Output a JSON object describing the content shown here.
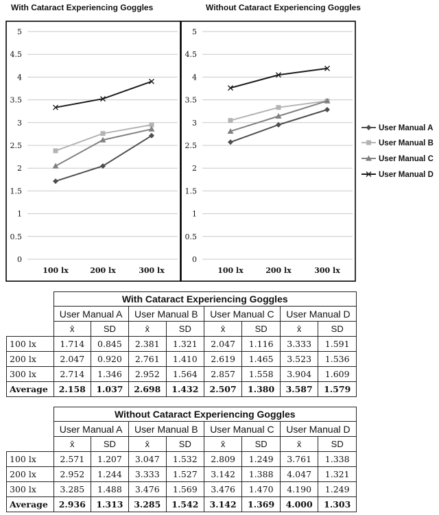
{
  "chart_data": [
    {
      "type": "line",
      "title": "With Cataract Experiencing Goggles",
      "categories": [
        "100 lx",
        "200 lx",
        "300 lx"
      ],
      "ylim": [
        0,
        5
      ],
      "yticks": [
        "0",
        "0.5",
        "1",
        "1.5",
        "2",
        "2.5",
        "3",
        "3.5",
        "4",
        "4.5",
        "5"
      ],
      "grid": true,
      "series": [
        {
          "name": "User Manual A",
          "values": [
            1.714,
            2.047,
            2.714
          ],
          "color": "#4d4d4d",
          "marker": "diamond"
        },
        {
          "name": "User Manual B",
          "values": [
            2.381,
            2.761,
            2.952
          ],
          "color": "#b3b3b3",
          "marker": "square"
        },
        {
          "name": "User Manual C",
          "values": [
            2.047,
            2.619,
            2.857
          ],
          "color": "#808080",
          "marker": "triangle"
        },
        {
          "name": "User Manual D",
          "values": [
            3.333,
            3.523,
            3.904
          ],
          "color": "#1a1a1a",
          "marker": "x"
        }
      ]
    },
    {
      "type": "line",
      "title": "Without Cataract Experiencing Goggles",
      "categories": [
        "100 lx",
        "200 lx",
        "300 lx"
      ],
      "ylim": [
        0,
        5
      ],
      "yticks": [
        "0",
        "0.5",
        "1",
        "1.5",
        "2",
        "2.5",
        "3",
        "3.5",
        "4",
        "4.5",
        "5"
      ],
      "grid": true,
      "legend": "right",
      "series": [
        {
          "name": "User Manual A",
          "values": [
            2.571,
            2.952,
            3.285
          ],
          "color": "#4d4d4d",
          "marker": "diamond"
        },
        {
          "name": "User Manual B",
          "values": [
            3.047,
            3.333,
            3.476
          ],
          "color": "#b3b3b3",
          "marker": "square"
        },
        {
          "name": "User Manual C",
          "values": [
            2.809,
            3.142,
            3.476
          ],
          "color": "#808080",
          "marker": "triangle"
        },
        {
          "name": "User Manual D",
          "values": [
            3.761,
            4.047,
            4.19
          ],
          "color": "#1a1a1a",
          "marker": "x"
        }
      ]
    }
  ],
  "tables": [
    {
      "title": "With Cataract Experiencing Goggles",
      "groups": [
        "User Manual A",
        "User Manual B",
        "User Manual C",
        "User Manual D"
      ],
      "sub": [
        "x̄",
        "SD"
      ],
      "rows": [
        {
          "label": "100 lx",
          "cells": [
            "1.714",
            "0.845",
            "2.381",
            "1.321",
            "2.047",
            "1.116",
            "3.333",
            "1.591"
          ]
        },
        {
          "label": "200 lx",
          "cells": [
            "2.047",
            "0.920",
            "2.761",
            "1.410",
            "2.619",
            "1.465",
            "3.523",
            "1.536"
          ]
        },
        {
          "label": "300 lx",
          "cells": [
            "2.714",
            "1.346",
            "2.952",
            "1.564",
            "2.857",
            "1.558",
            "3.904",
            "1.609"
          ]
        },
        {
          "label": "Average",
          "cells": [
            "2.158",
            "1.037",
            "2.698",
            "1.432",
            "2.507",
            "1.380",
            "3.587",
            "1.579"
          ]
        }
      ]
    },
    {
      "title": "Without Cataract Experiencing Goggles",
      "groups": [
        "User Manual A",
        "User Manual B",
        "User Manual C",
        "User Manual D"
      ],
      "sub": [
        "x̄",
        "SD"
      ],
      "rows": [
        {
          "label": "100 lx",
          "cells": [
            "2.571",
            "1.207",
            "3.047",
            "1.532",
            "2.809",
            "1.249",
            "3.761",
            "1.338"
          ]
        },
        {
          "label": "200 lx",
          "cells": [
            "2.952",
            "1.244",
            "3.333",
            "1.527",
            "3.142",
            "1.388",
            "4.047",
            "1.321"
          ]
        },
        {
          "label": "300 lx",
          "cells": [
            "3.285",
            "1.488",
            "3.476",
            "1.569",
            "3.476",
            "1.470",
            "4.190",
            "1.249"
          ]
        },
        {
          "label": "Average",
          "cells": [
            "2.936",
            "1.313",
            "3.285",
            "1.542",
            "3.142",
            "1.369",
            "4.000",
            "1.303"
          ]
        }
      ]
    }
  ]
}
